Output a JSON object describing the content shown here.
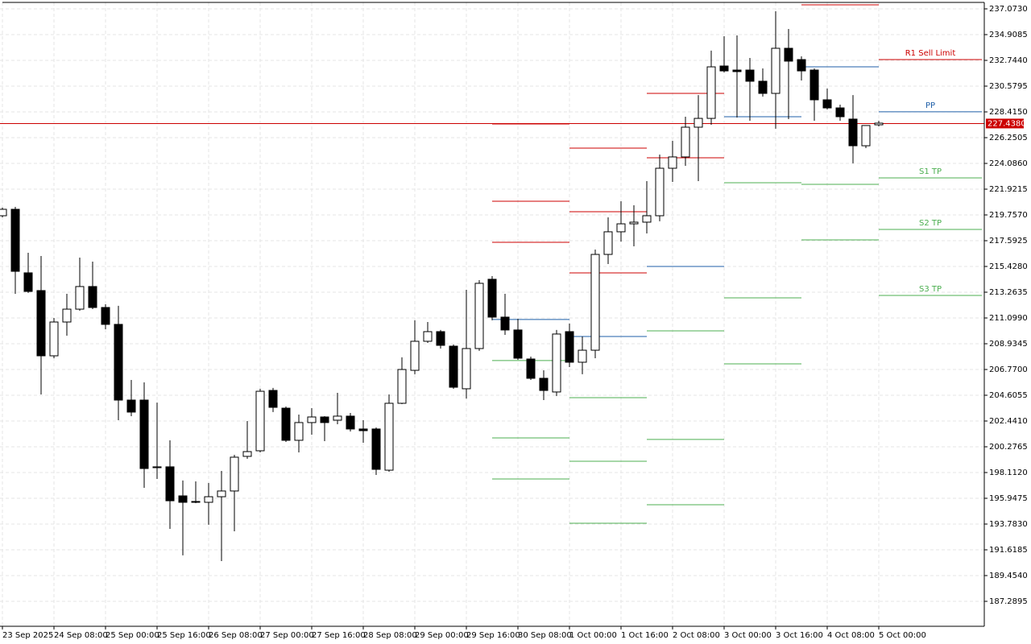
{
  "chart_data": {
    "type": "candlestick",
    "categories": [
      "23 Sep 2025",
      null,
      null,
      null,
      "24 Sep 08:00",
      null,
      null,
      null,
      "25 Sep 00:00",
      null,
      null,
      null,
      "25 Sep 16:00",
      null,
      null,
      null,
      "26 Sep 08:00",
      null,
      null,
      null,
      "27 Sep 00:00",
      null,
      null,
      null,
      "27 Sep 16:00",
      null,
      null,
      null,
      "28 Sep 08:00",
      null,
      null,
      null,
      "29 Sep 00:00",
      null,
      null,
      null,
      "29 Sep 16:00",
      null,
      null,
      null,
      "30 Sep 08:00",
      null,
      null,
      null,
      "1 Oct 00:00",
      null,
      null,
      null,
      "1 Oct 16:00",
      null,
      null,
      null,
      "2 Oct 08:00",
      null,
      null,
      null,
      "3 Oct 00:00",
      null,
      null,
      null,
      "3 Oct 16:00",
      null,
      null,
      null,
      "4 Oct 08:00",
      null,
      null,
      null,
      "5 Oct 00:00"
    ],
    "open": [
      219.69,
      220.23,
      214.89,
      213.4,
      207.92,
      210.76,
      211.84,
      213.74,
      211.98,
      210.56,
      204.2,
      204.2,
      198.52,
      198.59,
      196.15,
      195.68,
      195.61,
      196.08,
      196.56,
      199.47,
      199.94,
      205.01,
      203.52,
      200.82,
      202.31,
      202.78,
      202.51,
      202.85,
      201.77,
      201.77,
      198.31,
      203.93,
      206.7,
      209.14,
      209.95,
      208.73,
      205.15,
      208.53,
      214.35,
      211.17,
      210.09,
      207.65,
      206.03,
      204.88,
      209.95,
      207.38,
      208.39,
      216.44,
      218.34,
      219.01,
      219.15,
      219.69,
      223.68,
      224.63,
      227.13,
      227.87,
      232.27,
      231.93,
      231.93,
      230.99,
      229.97,
      233.76,
      232.81,
      231.93,
      229.43,
      228.75,
      227.81,
      225.57,
      227.33
    ],
    "high": [
      220.37,
      220.43,
      216.58,
      216.31,
      211.1,
      213.13,
      216.17,
      215.83,
      212.25,
      212.12,
      205.89,
      205.69,
      203.99,
      200.82,
      197.44,
      197.37,
      197.23,
      198.25,
      199.6,
      202.44,
      205.15,
      205.22,
      203.66,
      202.98,
      203.52,
      202.85,
      204.81,
      203.12,
      202.51,
      201.9,
      204.67,
      207.79,
      210.9,
      210.76,
      210.09,
      208.87,
      213.47,
      214.28,
      214.62,
      213.13,
      211.03,
      207.85,
      206.7,
      210.09,
      210.63,
      209.54,
      216.85,
      219.55,
      220.91,
      220.57,
      222.6,
      224.83,
      225.98,
      228.01,
      229.83,
      233.56,
      234.77,
      234.84,
      232.95,
      232.07,
      236.87,
      235.38,
      233.08,
      232.07,
      230.38,
      229.02,
      229.83,
      227.27,
      227.67
    ],
    "low": [
      219.55,
      213.13,
      213.2,
      204.67,
      207.72,
      209.61,
      211.71,
      211.84,
      210.15,
      202.51,
      202.85,
      196.83,
      197.57,
      193.38,
      191.15,
      195.54,
      193.72,
      190.67,
      193.17,
      199.26,
      199.8,
      203.19,
      200.68,
      199.8,
      201.29,
      200.75,
      202.17,
      201.56,
      200.61,
      197.91,
      198.18,
      203.86,
      206.37,
      209.0,
      208.53,
      205.15,
      204.33,
      208.33,
      210.9,
      209.68,
      207.58,
      205.89,
      204.2,
      204.54,
      206.97,
      206.37,
      207.72,
      215.63,
      217.52,
      217.12,
      218.2,
      219.22,
      222.53,
      223.88,
      222.6,
      227.33,
      231.73,
      227.94,
      227.67,
      229.7,
      227.0,
      227.81,
      231.05,
      227.67,
      228.62,
      227.67,
      224.09,
      225.37,
      227.2
    ],
    "close": [
      220.23,
      215.02,
      213.33,
      207.92,
      210.76,
      211.84,
      213.74,
      211.98,
      210.56,
      204.2,
      203.19,
      198.45,
      198.59,
      195.74,
      195.61,
      195.61,
      196.08,
      196.56,
      199.4,
      199.87,
      204.94,
      203.59,
      200.82,
      202.31,
      202.78,
      202.31,
      202.85,
      201.77,
      201.63,
      198.38,
      203.93,
      206.77,
      209.14,
      209.95,
      208.8,
      205.28,
      208.53,
      214.01,
      211.17,
      210.09,
      207.72,
      206.03,
      205.01,
      209.75,
      207.38,
      208.39,
      216.44,
      218.34,
      219.01,
      219.15,
      219.69,
      223.68,
      224.63,
      227.13,
      227.87,
      232.2,
      231.86,
      231.8,
      230.99,
      229.97,
      233.76,
      232.68,
      231.86,
      229.43,
      228.75,
      228.01,
      225.57,
      227.27,
      227.47
    ],
    "up_color": "#ffffff",
    "down_color": "#000000",
    "wick_color": "#000000",
    "ylim": [
      185.192,
      237.614
    ],
    "yticks": [
      {
        "value": 237.073,
        "label": "237.0730"
      },
      {
        "value": 234.9085,
        "label": "234.9085"
      },
      {
        "value": 232.744,
        "label": "232.7440"
      },
      {
        "value": 230.5795,
        "label": "230.5795"
      },
      {
        "value": 228.415,
        "label": "228.4150"
      },
      {
        "value": 226.2505,
        "label": "226.2505"
      },
      {
        "value": 224.086,
        "label": "224.0860"
      },
      {
        "value": 221.9215,
        "label": "221.9215"
      },
      {
        "value": 219.757,
        "label": "219.7570"
      },
      {
        "value": 217.5925,
        "label": "217.5925"
      },
      {
        "value": 215.428,
        "label": "215.4280"
      },
      {
        "value": 213.2635,
        "label": "213.2635"
      },
      {
        "value": 211.099,
        "label": "211.0990"
      },
      {
        "value": 208.9345,
        "label": "208.9345"
      },
      {
        "value": 206.77,
        "label": "206.7700"
      },
      {
        "value": 204.6055,
        "label": "204.6055"
      },
      {
        "value": 202.441,
        "label": "202.4410"
      },
      {
        "value": 200.2765,
        "label": "200.2765"
      },
      {
        "value": 198.112,
        "label": "198.1120"
      },
      {
        "value": 195.9475,
        "label": "195.9475"
      },
      {
        "value": 193.783,
        "label": "193.7830"
      },
      {
        "value": 191.6185,
        "label": "191.6185"
      },
      {
        "value": 189.454,
        "label": "189.4540"
      },
      {
        "value": 187.2895,
        "label": "187.2895"
      }
    ],
    "grid": true,
    "current_price": 227.438,
    "current_price_label": "227.4380",
    "current_price_color": "#cc0000",
    "resistance_color": "#cc0000",
    "pivot_color": "#1f5fa8",
    "support_color": "#4caf50",
    "pivots": [
      {
        "start": 38,
        "end": 44,
        "resistance": [
          227.4,
          220.91,
          217.46
        ],
        "pivot": 210.97,
        "support": [
          207.52,
          201.02,
          197.57
        ]
      },
      {
        "start": 44,
        "end": 50,
        "resistance": [
          225.37,
          220.03,
          214.89
        ],
        "pivot": 209.54,
        "support": [
          204.4,
          199.06,
          193.85
        ]
      },
      {
        "start": 50,
        "end": 56,
        "resistance": [
          229.97,
          224.56
        ],
        "pivot": 215.43,
        "support": [
          210.02,
          200.89,
          195.41
        ]
      },
      {
        "start": 56,
        "end": 62,
        "resistance": [],
        "pivot": 228.01,
        "support": [
          222.46,
          212.79,
          207.24
        ]
      },
      {
        "start": 62,
        "end": 68,
        "resistance": [
          237.41
        ],
        "pivot": 232.2,
        "support": [
          222.33,
          217.66
        ]
      },
      {
        "start": 68,
        "end": 76,
        "resistance": [
          232.81
        ],
        "pivot": 228.42,
        "support": [
          222.87,
          218.54,
          212.99
        ],
        "resistance_labels": [
          "R1 Sell Limit"
        ],
        "pivot_label": "PP",
        "support_labels": [
          "S1 TP",
          "S2 TP",
          "S3 TP"
        ]
      }
    ]
  }
}
